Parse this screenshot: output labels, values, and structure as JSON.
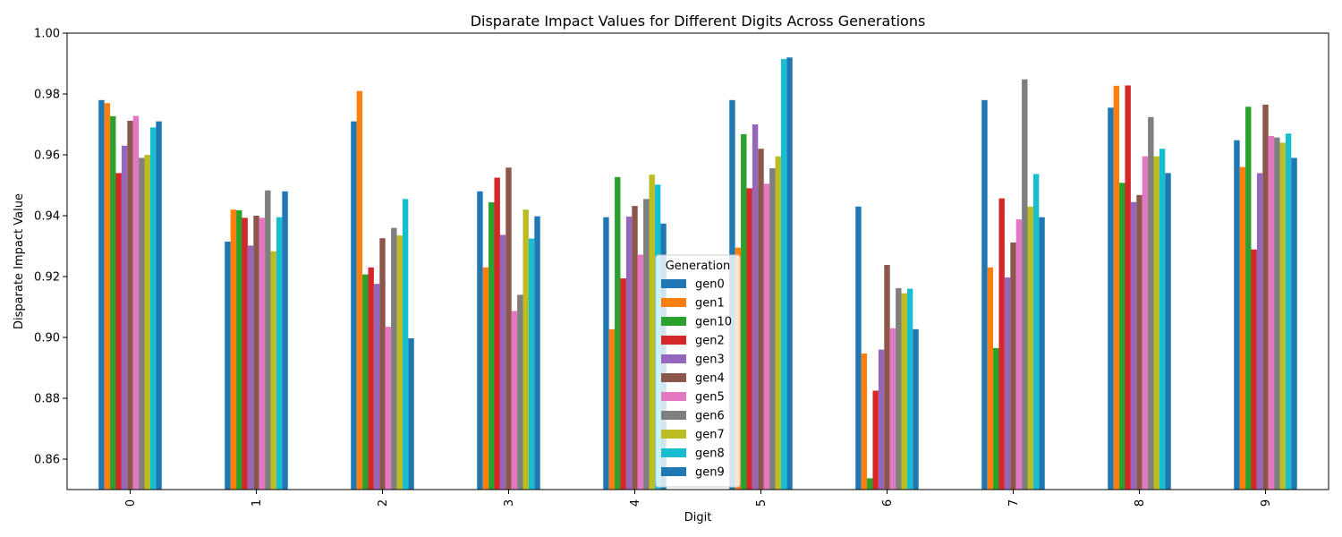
{
  "chart_data": {
    "type": "bar",
    "title": "Disparate Impact Values for Different Digits Across Generations",
    "xlabel": "Digit",
    "ylabel": "Disparate Impact Value",
    "categories": [
      "0",
      "1",
      "2",
      "3",
      "4",
      "5",
      "6",
      "7",
      "8",
      "9"
    ],
    "ylim": [
      0.85,
      1.0
    ],
    "yticks": [
      "0.86",
      "0.88",
      "0.90",
      "0.92",
      "0.94",
      "0.96",
      "0.98",
      "1.00"
    ],
    "grid": false,
    "legend": {
      "title": "Generation",
      "placement": "lower-center"
    },
    "series": [
      {
        "name": "gen0",
        "color": "#1f77b4",
        "values": [
          0.978,
          0.9315,
          0.971,
          0.948,
          0.9395,
          0.978,
          0.943,
          0.978,
          0.9755,
          0.9648
        ]
      },
      {
        "name": "gen1",
        "color": "#ff7f0e",
        "values": [
          0.977,
          0.942,
          0.981,
          0.923,
          0.9027,
          0.9295,
          0.8947,
          0.923,
          0.9827,
          0.956
        ]
      },
      {
        "name": "gen10",
        "color": "#2ca02c",
        "values": [
          0.9727,
          0.9418,
          0.9207,
          0.9444,
          0.9527,
          0.9668,
          0.8537,
          0.8965,
          0.9508,
          0.9758
        ]
      },
      {
        "name": "gen2",
        "color": "#d62728",
        "values": [
          0.954,
          0.9393,
          0.923,
          0.9525,
          0.9194,
          0.949,
          0.8825,
          0.9457,
          0.9828,
          0.9289
        ]
      },
      {
        "name": "gen3",
        "color": "#9467bd",
        "values": [
          0.963,
          0.9302,
          0.9176,
          0.9337,
          0.9397,
          0.97,
          0.896,
          0.9197,
          0.9445,
          0.954
        ]
      },
      {
        "name": "gen4",
        "color": "#8c564b",
        "values": [
          0.9712,
          0.94,
          0.9326,
          0.9558,
          0.9432,
          0.962,
          0.9238,
          0.9312,
          0.9468,
          0.9765
        ]
      },
      {
        "name": "gen5",
        "color": "#e377c2",
        "values": [
          0.9728,
          0.9393,
          0.9035,
          0.9087,
          0.9272,
          0.9505,
          0.903,
          0.9388,
          0.9595,
          0.9662
        ]
      },
      {
        "name": "gen6",
        "color": "#7f7f7f",
        "values": [
          0.959,
          0.9483,
          0.936,
          0.914,
          0.9455,
          0.9556,
          0.9162,
          0.9848,
          0.9724,
          0.9657
        ]
      },
      {
        "name": "gen7",
        "color": "#bcbd22",
        "values": [
          0.96,
          0.9283,
          0.9335,
          0.942,
          0.9535,
          0.9595,
          0.9145,
          0.943,
          0.9595,
          0.964
        ]
      },
      {
        "name": "gen8",
        "color": "#17becf",
        "values": [
          0.969,
          0.9395,
          0.9455,
          0.9325,
          0.9502,
          0.9915,
          0.916,
          0.9537,
          0.962,
          0.967
        ]
      },
      {
        "name": "gen9",
        "color": "#1f77b4",
        "values": [
          0.971,
          0.948,
          0.8997,
          0.9398,
          0.9374,
          0.992,
          0.9027,
          0.9395,
          0.954,
          0.959
        ]
      }
    ]
  }
}
